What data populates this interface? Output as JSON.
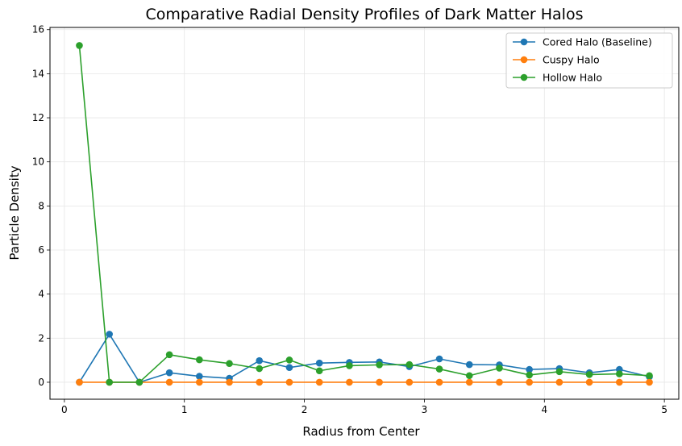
{
  "chart_data": {
    "type": "line",
    "title": "Comparative Radial Density Profiles of Dark Matter Halos",
    "xlabel": "Radius from Center",
    "ylabel": "Particle Density",
    "xlim": [
      -0.12,
      5.12
    ],
    "ylim": [
      -0.77,
      16.1
    ],
    "xticks": [
      0,
      1,
      2,
      3,
      4,
      5
    ],
    "yticks": [
      0,
      2,
      4,
      6,
      8,
      10,
      12,
      14,
      16
    ],
    "grid": true,
    "legend_position": "top-right",
    "x": [
      0.125,
      0.375,
      0.625,
      0.875,
      1.125,
      1.375,
      1.625,
      1.875,
      2.125,
      2.375,
      2.625,
      2.875,
      3.125,
      3.375,
      3.625,
      3.875,
      4.125,
      4.375,
      4.625,
      4.875
    ],
    "series": [
      {
        "name": "Cored Halo (Baseline)",
        "color": "#1f77b4",
        "values": [
          0.0,
          2.18,
          0.0,
          0.43,
          0.27,
          0.18,
          0.98,
          0.67,
          0.87,
          0.9,
          0.92,
          0.71,
          1.06,
          0.8,
          0.79,
          0.58,
          0.62,
          0.43,
          0.58,
          0.25
        ]
      },
      {
        "name": "Cuspy Halo",
        "color": "#ff7f0e",
        "values": [
          0,
          0,
          0,
          0,
          0,
          0,
          0,
          0,
          0,
          0,
          0,
          0,
          0,
          0,
          0,
          0,
          0,
          0,
          0,
          0
        ]
      },
      {
        "name": "Hollow Halo",
        "color": "#2ca02c",
        "values": [
          15.28,
          0.0,
          0.0,
          1.25,
          1.02,
          0.85,
          0.62,
          1.01,
          0.52,
          0.75,
          0.79,
          0.8,
          0.6,
          0.3,
          0.64,
          0.33,
          0.48,
          0.35,
          0.38,
          0.3
        ]
      }
    ]
  }
}
